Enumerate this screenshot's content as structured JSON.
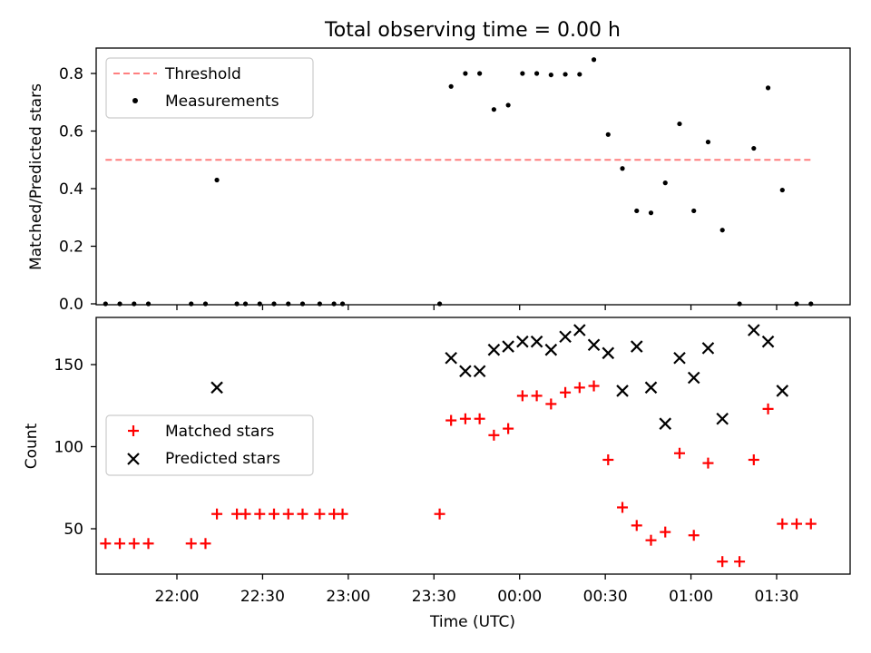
{
  "chart_data": [
    {
      "type": "scatter",
      "title": "Total observing time = 0.00 h",
      "xlabel": "",
      "ylabel": "Matched/Predicted stars",
      "ylim": [
        0,
        0.9
      ],
      "yticks": [
        "0.0",
        "0.2",
        "0.4",
        "0.6",
        "0.8"
      ],
      "legend": {
        "position": "top-left",
        "entries": [
          "Threshold",
          "Measurements"
        ]
      },
      "threshold": {
        "name": "Threshold",
        "value": 0.5,
        "color": "#ff7f7f",
        "x_start": "21:35",
        "x_end": "01:43"
      },
      "series": [
        {
          "name": "Measurements",
          "color": "#000000",
          "points": [
            {
              "x": "21:35",
              "y": 0.0
            },
            {
              "x": "21:40",
              "y": 0.0
            },
            {
              "x": "21:45",
              "y": 0.0
            },
            {
              "x": "21:50",
              "y": 0.0
            },
            {
              "x": "22:05",
              "y": 0.0
            },
            {
              "x": "22:10",
              "y": 0.0
            },
            {
              "x": "22:14",
              "y": 0.43
            },
            {
              "x": "22:21",
              "y": 0.0
            },
            {
              "x": "22:24",
              "y": 0.0
            },
            {
              "x": "22:29",
              "y": 0.0
            },
            {
              "x": "22:34",
              "y": 0.0
            },
            {
              "x": "22:39",
              "y": 0.0
            },
            {
              "x": "22:44",
              "y": 0.0
            },
            {
              "x": "22:50",
              "y": 0.0
            },
            {
              "x": "22:55",
              "y": 0.0
            },
            {
              "x": "22:58",
              "y": 0.0
            },
            {
              "x": "23:32",
              "y": 0.0
            },
            {
              "x": "23:36",
              "y": 0.755
            },
            {
              "x": "23:41",
              "y": 0.8
            },
            {
              "x": "23:46",
              "y": 0.8
            },
            {
              "x": "23:51",
              "y": 0.675
            },
            {
              "x": "23:56",
              "y": 0.69
            },
            {
              "x": "00:01",
              "y": 0.8
            },
            {
              "x": "00:06",
              "y": 0.8
            },
            {
              "x": "00:11",
              "y": 0.795
            },
            {
              "x": "00:16",
              "y": 0.797
            },
            {
              "x": "00:21",
              "y": 0.797
            },
            {
              "x": "00:26",
              "y": 0.848
            },
            {
              "x": "00:31",
              "y": 0.588
            },
            {
              "x": "00:36",
              "y": 0.47
            },
            {
              "x": "00:41",
              "y": 0.323
            },
            {
              "x": "00:46",
              "y": 0.316
            },
            {
              "x": "00:51",
              "y": 0.42
            },
            {
              "x": "00:56",
              "y": 0.625
            },
            {
              "x": "01:01",
              "y": 0.323
            },
            {
              "x": "01:06",
              "y": 0.562
            },
            {
              "x": "01:11",
              "y": 0.256
            },
            {
              "x": "01:17",
              "y": 0.0
            },
            {
              "x": "01:22",
              "y": 0.54
            },
            {
              "x": "01:27",
              "y": 0.75
            },
            {
              "x": "01:32",
              "y": 0.395
            },
            {
              "x": "01:37",
              "y": 0.0
            },
            {
              "x": "01:42",
              "y": 0.0
            }
          ]
        }
      ]
    },
    {
      "type": "scatter",
      "title": "",
      "xlabel": "Time (UTC)",
      "ylabel": "Count",
      "ylim": [
        22,
        180
      ],
      "yticks": [
        "50",
        "100",
        "150"
      ],
      "xticks": [
        "22:00",
        "22:30",
        "23:00",
        "23:30",
        "00:00",
        "00:30",
        "01:00",
        "01:30"
      ],
      "legend": {
        "position": "center-left",
        "entries": [
          "Matched stars",
          "Predicted stars"
        ]
      },
      "series": [
        {
          "name": "Matched stars",
          "marker": "plus",
          "color": "#ff0000",
          "points": [
            {
              "x": "21:35",
              "y": 41
            },
            {
              "x": "21:40",
              "y": 41
            },
            {
              "x": "21:45",
              "y": 41
            },
            {
              "x": "21:50",
              "y": 41
            },
            {
              "x": "22:05",
              "y": 41
            },
            {
              "x": "22:10",
              "y": 41
            },
            {
              "x": "22:14",
              "y": 59
            },
            {
              "x": "22:21",
              "y": 59
            },
            {
              "x": "22:24",
              "y": 59
            },
            {
              "x": "22:29",
              "y": 59
            },
            {
              "x": "22:34",
              "y": 59
            },
            {
              "x": "22:39",
              "y": 59
            },
            {
              "x": "22:44",
              "y": 59
            },
            {
              "x": "22:50",
              "y": 59
            },
            {
              "x": "22:55",
              "y": 59
            },
            {
              "x": "22:58",
              "y": 59
            },
            {
              "x": "23:32",
              "y": 59
            },
            {
              "x": "23:36",
              "y": 116
            },
            {
              "x": "23:41",
              "y": 117
            },
            {
              "x": "23:46",
              "y": 117
            },
            {
              "x": "23:51",
              "y": 107
            },
            {
              "x": "23:56",
              "y": 111
            },
            {
              "x": "00:01",
              "y": 131
            },
            {
              "x": "00:06",
              "y": 131
            },
            {
              "x": "00:11",
              "y": 126
            },
            {
              "x": "00:16",
              "y": 133
            },
            {
              "x": "00:21",
              "y": 136
            },
            {
              "x": "00:26",
              "y": 137
            },
            {
              "x": "00:31",
              "y": 92
            },
            {
              "x": "00:36",
              "y": 63
            },
            {
              "x": "00:41",
              "y": 52
            },
            {
              "x": "00:46",
              "y": 43
            },
            {
              "x": "00:51",
              "y": 48
            },
            {
              "x": "00:56",
              "y": 96
            },
            {
              "x": "01:01",
              "y": 46
            },
            {
              "x": "01:06",
              "y": 90
            },
            {
              "x": "01:11",
              "y": 30
            },
            {
              "x": "01:17",
              "y": 30
            },
            {
              "x": "01:22",
              "y": 92
            },
            {
              "x": "01:27",
              "y": 123
            },
            {
              "x": "01:32",
              "y": 53
            },
            {
              "x": "01:37",
              "y": 53
            },
            {
              "x": "01:42",
              "y": 53
            }
          ]
        },
        {
          "name": "Predicted stars",
          "marker": "x",
          "color": "#000000",
          "points": [
            {
              "x": "22:14",
              "y": 136
            },
            {
              "x": "23:36",
              "y": 154
            },
            {
              "x": "23:41",
              "y": 146
            },
            {
              "x": "23:46",
              "y": 146
            },
            {
              "x": "23:51",
              "y": 159
            },
            {
              "x": "23:56",
              "y": 161
            },
            {
              "x": "00:01",
              "y": 164
            },
            {
              "x": "00:06",
              "y": 164
            },
            {
              "x": "00:11",
              "y": 159
            },
            {
              "x": "00:16",
              "y": 167
            },
            {
              "x": "00:21",
              "y": 171
            },
            {
              "x": "00:26",
              "y": 162
            },
            {
              "x": "00:31",
              "y": 157
            },
            {
              "x": "00:36",
              "y": 134
            },
            {
              "x": "00:41",
              "y": 161
            },
            {
              "x": "00:46",
              "y": 136
            },
            {
              "x": "00:51",
              "y": 114
            },
            {
              "x": "00:56",
              "y": 154
            },
            {
              "x": "01:01",
              "y": 142
            },
            {
              "x": "01:06",
              "y": 160
            },
            {
              "x": "01:11",
              "y": 117
            },
            {
              "x": "01:22",
              "y": 171
            },
            {
              "x": "01:27",
              "y": 164
            },
            {
              "x": "01:32",
              "y": 134
            }
          ]
        }
      ]
    }
  ]
}
